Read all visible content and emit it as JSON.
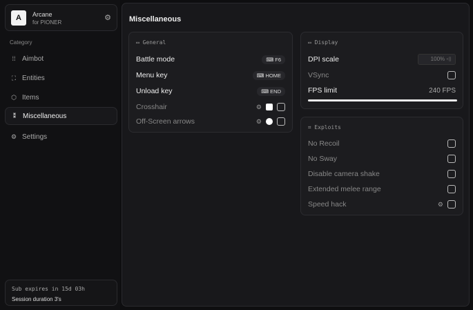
{
  "brand": {
    "logo": "A",
    "name": "Arcane",
    "subtitle": "for PIONER"
  },
  "sidebar": {
    "category_label": "Category",
    "items": [
      {
        "label": "Aimbot",
        "icon": "crosshair-dots-icon"
      },
      {
        "label": "Entities",
        "icon": "entities-icon"
      },
      {
        "label": "Items",
        "icon": "box-icon"
      },
      {
        "label": "Miscellaneous",
        "icon": "misc-icon",
        "active": true
      },
      {
        "label": "Settings",
        "icon": "gear-icon"
      }
    ]
  },
  "footer": {
    "expires": "Sub expires in 15d 03h",
    "session": "Session duration 3's"
  },
  "main": {
    "title": "Miscellaneous",
    "general": {
      "title": "General",
      "rows": [
        {
          "label": "Battle mode",
          "key": "F6"
        },
        {
          "label": "Menu key",
          "key": "HOME"
        },
        {
          "label": "Unload key",
          "key": "END"
        },
        {
          "label": "Crosshair"
        },
        {
          "label": "Off-Screen arrows"
        }
      ]
    },
    "display": {
      "title": "Display",
      "dpi_label": "DPI scale",
      "dpi_value": "100%",
      "vsync": "VSync",
      "fps_label": "FPS limit",
      "fps_value": "240 FPS",
      "fps_fill": 1.0
    },
    "exploits": {
      "title": "Exploits",
      "items": [
        "No Recoil",
        "No Sway",
        "Disable camera shake",
        "Extended melee range",
        "Speed hack"
      ]
    }
  }
}
